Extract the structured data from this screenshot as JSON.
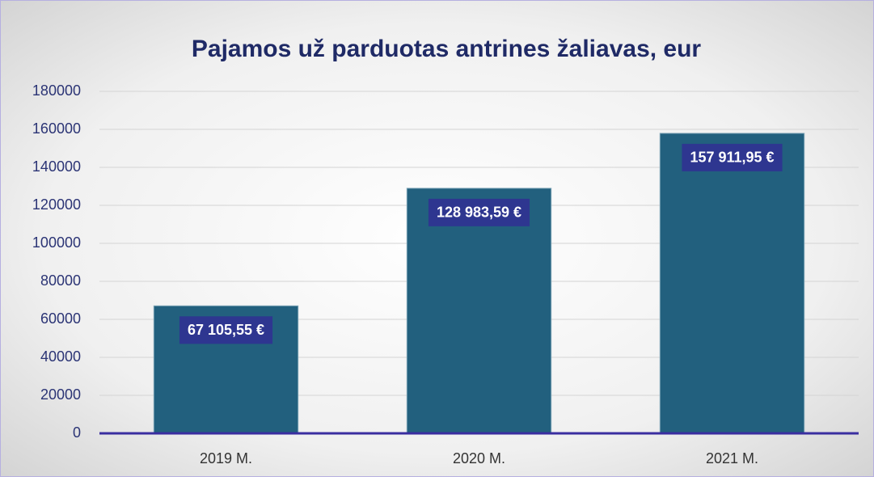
{
  "chart_data": {
    "type": "bar",
    "title": "Pajamos už parduotas antrines žaliavas, eur",
    "categories": [
      "2019 M.",
      "2020 M.",
      "2021 M."
    ],
    "values": [
      67105.55,
      128983.59,
      157911.95
    ],
    "value_labels": [
      "67 105,55 €",
      "128 983,59 €",
      "157 911,95 €"
    ],
    "color": "#22607e",
    "ylim": [
      0,
      180000
    ],
    "yticks": [
      0,
      20000,
      40000,
      60000,
      80000,
      100000,
      120000,
      140000,
      160000,
      180000
    ],
    "grid": true
  }
}
